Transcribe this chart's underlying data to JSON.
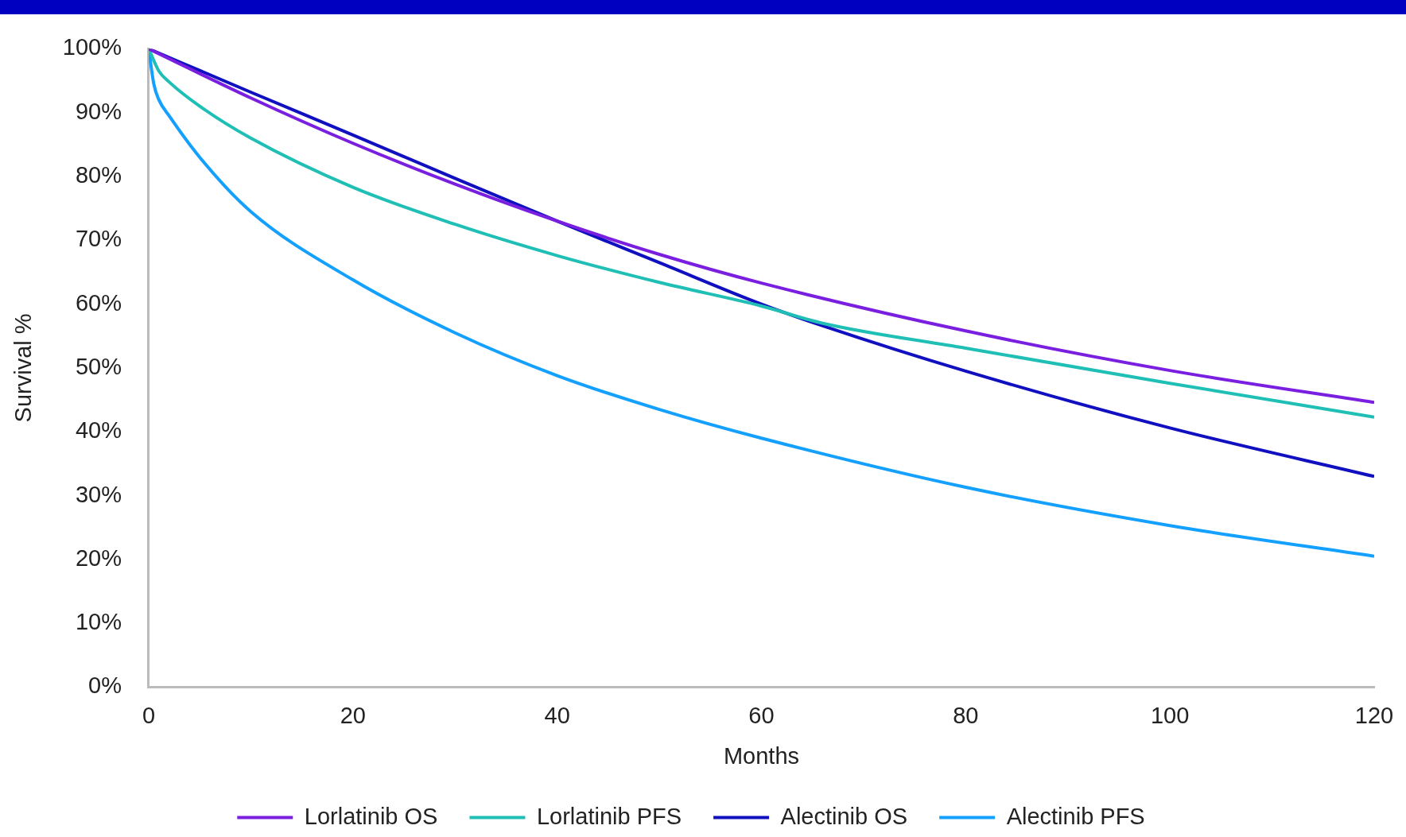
{
  "chart_data": {
    "type": "line",
    "xlabel": "Months",
    "ylabel": "Survival %",
    "xlim": [
      0,
      120
    ],
    "xticks": [
      0,
      20,
      40,
      60,
      80,
      100,
      120
    ],
    "ylim": [
      0,
      100
    ],
    "yticks": [
      {
        "value": 0,
        "label": "0%"
      },
      {
        "value": 10,
        "label": "10%"
      },
      {
        "value": 20,
        "label": "20%"
      },
      {
        "value": 30,
        "label": "30%"
      },
      {
        "value": 40,
        "label": "40%"
      },
      {
        "value": 50,
        "label": "50%"
      },
      {
        "value": 60,
        "label": "60%"
      },
      {
        "value": 70,
        "label": "70%"
      },
      {
        "value": 80,
        "label": "80%"
      },
      {
        "value": 90,
        "label": "90%"
      },
      {
        "value": 100,
        "label": "100%"
      }
    ],
    "grid": false,
    "legend": "bottom",
    "marker": "none",
    "line_style": "solid",
    "series": [
      {
        "name": "Lorlatinib OS",
        "color": "#7a1fe0",
        "x": [
          0,
          10,
          20,
          30,
          40,
          50,
          60,
          80,
          100,
          120
        ],
        "values": [
          100,
          92.3,
          85.2,
          78.8,
          73,
          67.8,
          63.3,
          55.8,
          49.6,
          44.6
        ]
      },
      {
        "name": "Lorlatinib PFS",
        "color": "#1fbfb5",
        "x": [
          0,
          1,
          2,
          5,
          10,
          20,
          30,
          40,
          50,
          60,
          66,
          80,
          100,
          120
        ],
        "values": [
          100,
          96.5,
          94.8,
          91,
          86,
          78.3,
          72.5,
          67.6,
          63.4,
          59.7,
          57,
          53.1,
          47.6,
          42.3
        ]
      },
      {
        "name": "Alectinib OS",
        "color": "#1010c0",
        "x": [
          0,
          10,
          20,
          30,
          40,
          50,
          60,
          66,
          80,
          100,
          120
        ],
        "values": [
          100,
          93.2,
          86.5,
          79.7,
          73,
          66.5,
          60,
          56.6,
          49.5,
          40.6,
          33
        ]
      },
      {
        "name": "Alectinib PFS",
        "color": "#14a0ff",
        "x": [
          0,
          0.5,
          1,
          2,
          5,
          10,
          20,
          30,
          40,
          50,
          60,
          80,
          100,
          120
        ],
        "values": [
          100,
          94.5,
          92,
          89.5,
          83,
          74.5,
          63.8,
          55.5,
          48.8,
          43.5,
          39,
          31.3,
          25.3,
          20.5
        ]
      }
    ]
  }
}
